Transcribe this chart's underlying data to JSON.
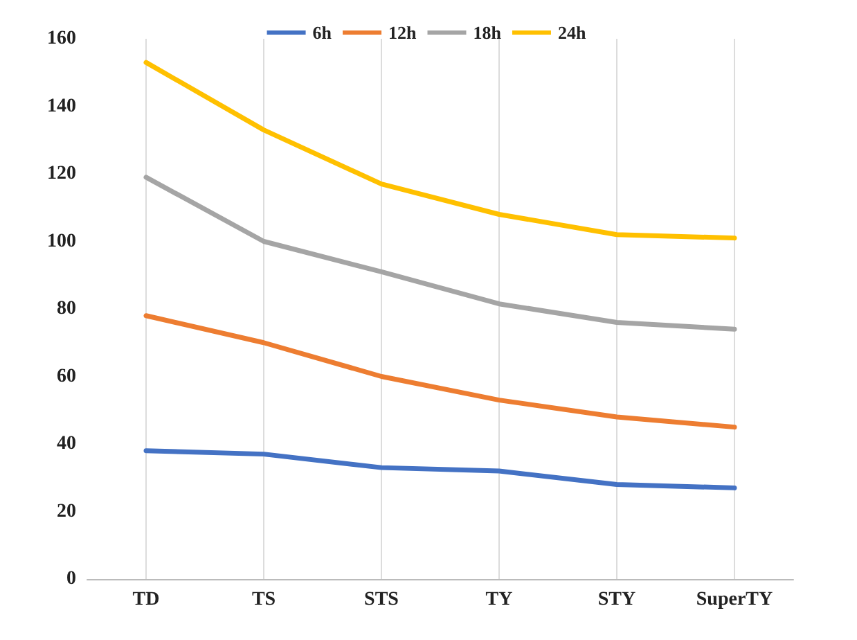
{
  "chart_data": {
    "type": "line",
    "categories": [
      "TD",
      "TS",
      "STS",
      "TY",
      "STY",
      "SuperTY"
    ],
    "series": [
      {
        "name": "6h",
        "color": "#4472c4",
        "values": [
          38,
          37,
          33,
          32,
          28,
          27
        ]
      },
      {
        "name": "12h",
        "color": "#ed7d31",
        "values": [
          78,
          70,
          60,
          53,
          48,
          45
        ]
      },
      {
        "name": "18h",
        "color": "#a5a5a5",
        "values": [
          119,
          100,
          91,
          81.5,
          76,
          74
        ]
      },
      {
        "name": "24h",
        "color": "#ffc000",
        "values": [
          153,
          133,
          117,
          108,
          102,
          101
        ]
      }
    ],
    "ylim": [
      0,
      160
    ],
    "yticks": [
      0,
      20,
      40,
      60,
      80,
      100,
      120,
      140,
      160
    ],
    "grid": "x",
    "legend": "top",
    "marker": "none",
    "line_style": "solid"
  }
}
